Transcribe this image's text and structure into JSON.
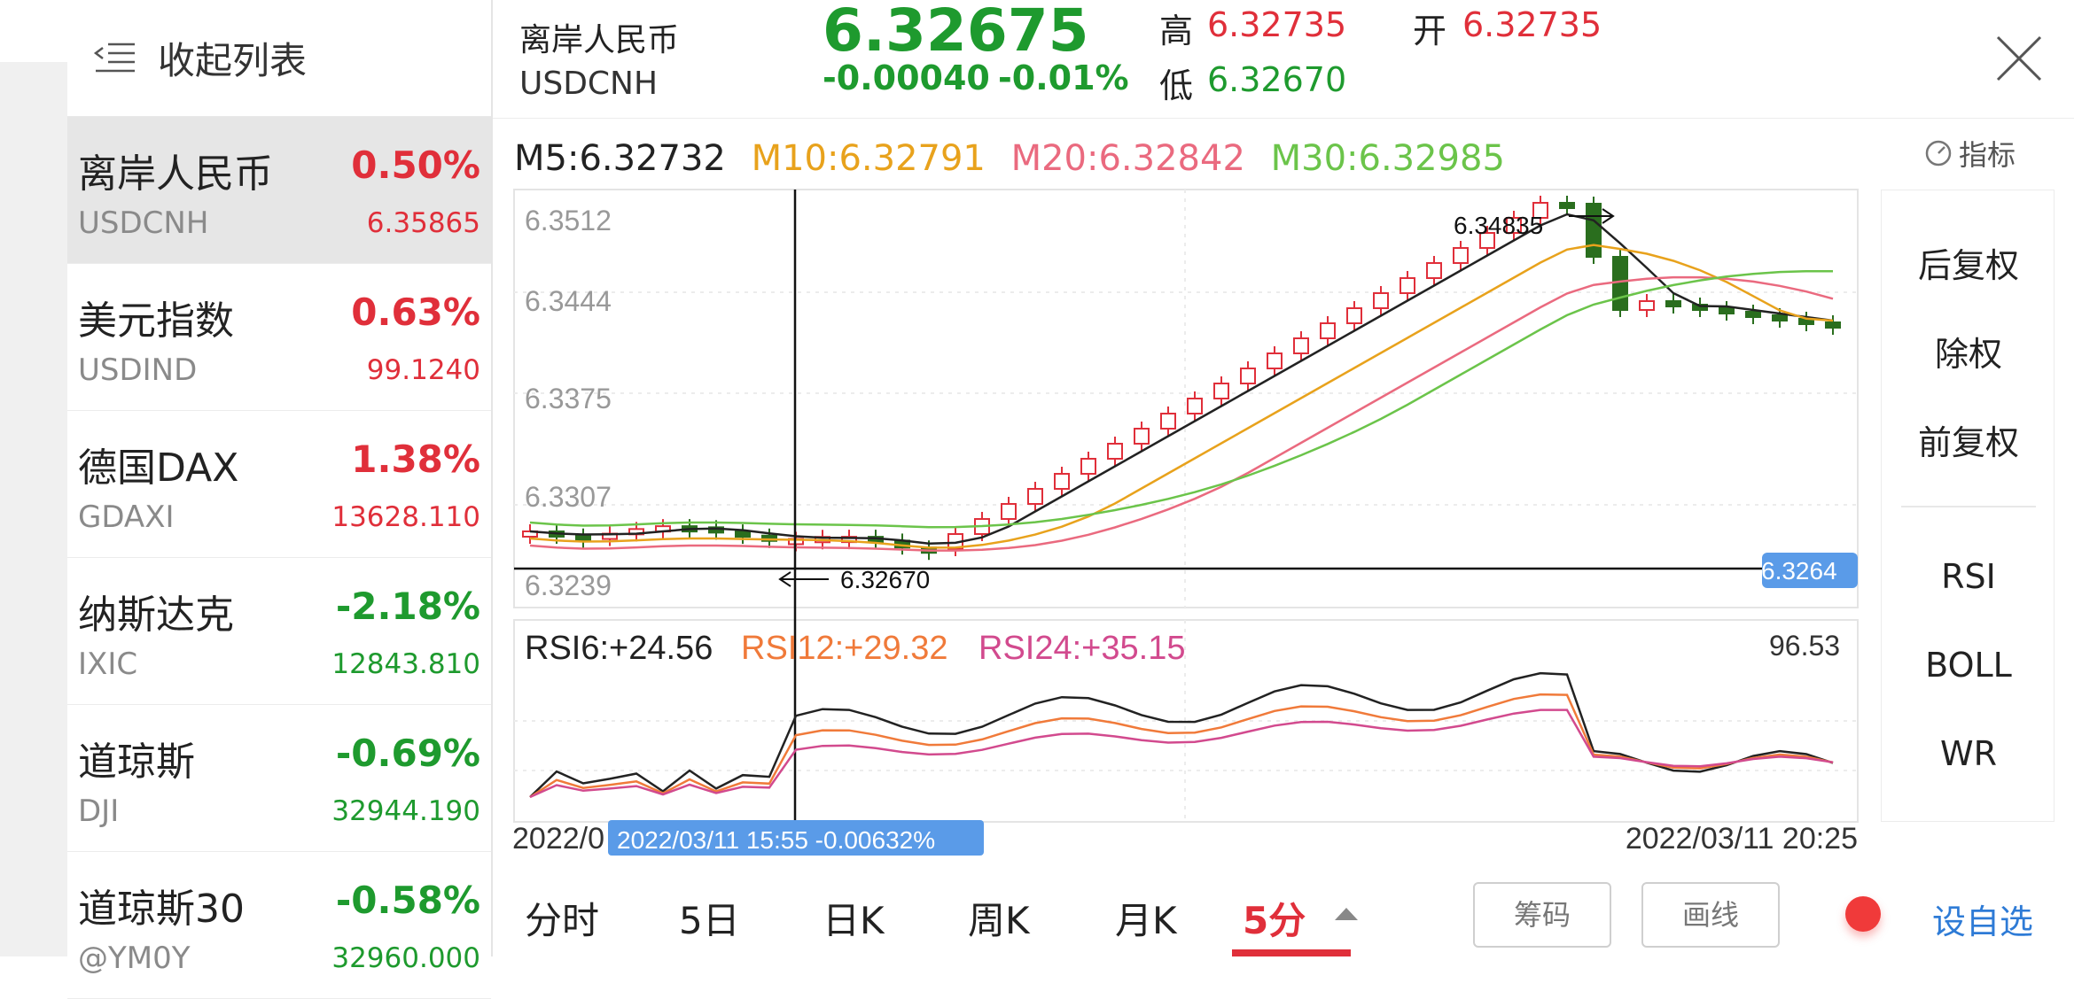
{
  "sidebar": {
    "collapse_label": "收起列表",
    "items": [
      {
        "name": "离岸人民币",
        "code": "USDCNH",
        "change": "0.50%",
        "price": "6.35865",
        "dir": "up",
        "active": true
      },
      {
        "name": "美元指数",
        "code": "USDIND",
        "change": "0.63%",
        "price": "99.1240",
        "dir": "up"
      },
      {
        "name": "德国DAX",
        "code": "GDAXI",
        "change": "1.38%",
        "price": "13628.110",
        "dir": "up"
      },
      {
        "name": "纳斯达克",
        "code": "IXIC",
        "change": "-2.18%",
        "price": "12843.810",
        "dir": "down"
      },
      {
        "name": "道琼斯",
        "code": "DJI",
        "change": "-0.69%",
        "price": "32944.190",
        "dir": "down"
      },
      {
        "name": "道琼斯30",
        "code": "@YM0Y",
        "change": "-0.58%",
        "price": "32960.000",
        "dir": "down"
      }
    ]
  },
  "quote": {
    "name": "离岸人民币",
    "code": "USDCNH",
    "price": "6.32675",
    "change": "-0.00040",
    "change_pct": "-0.01%",
    "high_label": "高",
    "high": "6.32735",
    "open_label": "开",
    "open": "6.32735",
    "low_label": "低",
    "low": "6.32670"
  },
  "ma": {
    "m5": "M5:6.32732",
    "m10": "M10:6.32791",
    "m20": "M20:6.32842",
    "m30": "M30:6.32985",
    "colors": {
      "m5": "#222222",
      "m10": "#e8a21c",
      "m20": "#ea6a7f",
      "m30": "#6bc44a"
    }
  },
  "indicator_label": "指标",
  "kline": {
    "y_ticks": [
      "6.3512",
      "6.3444",
      "6.3375",
      "6.3307",
      "6.3239"
    ],
    "high_note": "6.34835",
    "low_note": "6.32670",
    "crosshair_value": "6.3264"
  },
  "rsi": {
    "rsi6": "RSI6:+24.56",
    "rsi12": "RSI12:+29.32",
    "rsi24": "RSI24:+35.15",
    "max_label": "96.53",
    "colors": {
      "rsi6": "#222222",
      "rsi12": "#f07a3a",
      "rsi24": "#d24a8e"
    }
  },
  "time_axis": {
    "left": "2022/0",
    "right": "2022/03/11 20:25",
    "crosshair_label": "2022/03/11 15:55  -0.00632%"
  },
  "right_panel": [
    "后复权",
    "除权",
    "前复权",
    "RSI",
    "BOLL",
    "WR"
  ],
  "tabs": [
    "分时",
    "5日",
    "日K",
    "周K",
    "月K",
    "5分"
  ],
  "active_tab": "5分",
  "buttons": {
    "chips": "筹码",
    "draw": "画线",
    "watch": "设自选"
  },
  "theme": {
    "up": "#e02f3a",
    "down": "#1e9a2e",
    "accent_blue": "#5a9be8"
  }
}
